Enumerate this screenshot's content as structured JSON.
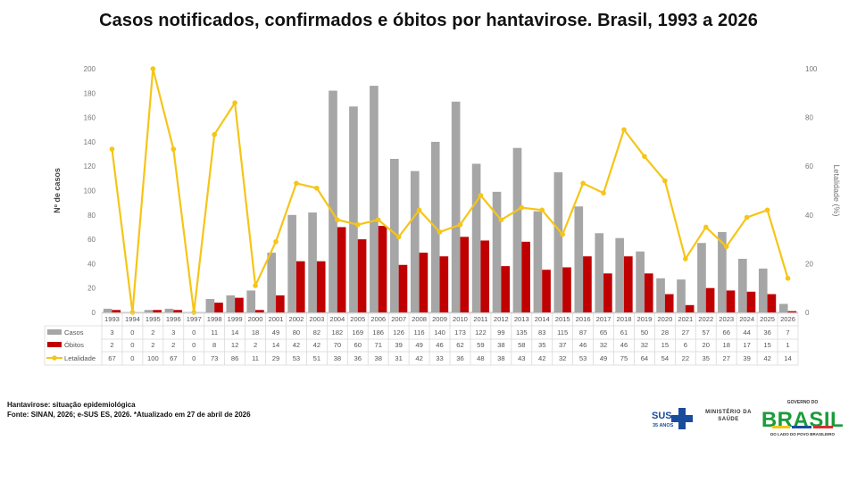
{
  "title": "Casos notificados, confirmados e óbitos por hantavirose. Brasil, 1993 a 2026",
  "footer": {
    "line1": "Hantavirose: situação epidemiológica",
    "line2": "Fonte: SINAN, 2026; e-SUS ES, 2026. *Atualizado em 27 de abril de 2026"
  },
  "logos": {
    "sus": "SUS",
    "sus_sub": "35 ANOS",
    "ministerio_line1": "MINISTÉRIO DA",
    "ministerio_line2": "SAÚDE",
    "governo_top": "GOVERNO DO",
    "governo_main": "BRASIL",
    "governo_sub": "DO LADO DO POVO BRASILEIRO"
  },
  "colors": {
    "casos": "#a6a6a6",
    "obitos": "#c00000",
    "letalidade": "#f5c518"
  },
  "chart_data": {
    "type": "bar",
    "title": "Casos notificados, confirmados e óbitos por hantavirose. Brasil, 1993 a 2026",
    "ylabel": "Nº de casos",
    "y2label": "Letalidade (%)",
    "ylim": [
      0,
      200
    ],
    "yticks": [
      0,
      20,
      40,
      60,
      80,
      100,
      120,
      140,
      160,
      180,
      200
    ],
    "y2lim": [
      0,
      100
    ],
    "y2ticks": [
      0,
      20,
      40,
      60,
      80,
      100
    ],
    "grid": false,
    "legend": "table-bottom",
    "categories": [
      "1993",
      "1994",
      "1995",
      "1996",
      "1997",
      "1998",
      "1999",
      "2000",
      "2001",
      "2002",
      "2003",
      "2004",
      "2005",
      "2006",
      "2007",
      "2008",
      "2009",
      "2010",
      "2011",
      "2012",
      "2013",
      "2014",
      "2015",
      "2016",
      "2017",
      "2018",
      "2019",
      "2020",
      "2021",
      "2022",
      "2023",
      "2024",
      "2025",
      "2026"
    ],
    "series": [
      {
        "name": "Casos",
        "type": "bar",
        "axis": "left",
        "values": [
          3,
          0,
          2,
          3,
          0,
          11,
          14,
          18,
          49,
          80,
          82,
          182,
          169,
          186,
          126,
          116,
          140,
          173,
          122,
          99,
          135,
          83,
          115,
          87,
          65,
          61,
          50,
          28,
          27,
          57,
          66,
          44,
          36,
          7
        ]
      },
      {
        "name": "Óbitos",
        "type": "bar",
        "axis": "left",
        "values": [
          2,
          0,
          2,
          2,
          0,
          8,
          12,
          2,
          14,
          42,
          42,
          70,
          60,
          71,
          39,
          49,
          46,
          62,
          59,
          38,
          58,
          35,
          37,
          46,
          32,
          46,
          32,
          15,
          6,
          20,
          18,
          17,
          15,
          1
        ]
      },
      {
        "name": "Letalidade",
        "type": "line",
        "axis": "right",
        "values": [
          67,
          0,
          100,
          67,
          0,
          73,
          86,
          11,
          29,
          53,
          51,
          38,
          36,
          38,
          31,
          42,
          33,
          36,
          48,
          38,
          43,
          42,
          32,
          53,
          49,
          75,
          64,
          54,
          22,
          35,
          27,
          39,
          42,
          14
        ]
      }
    ]
  }
}
